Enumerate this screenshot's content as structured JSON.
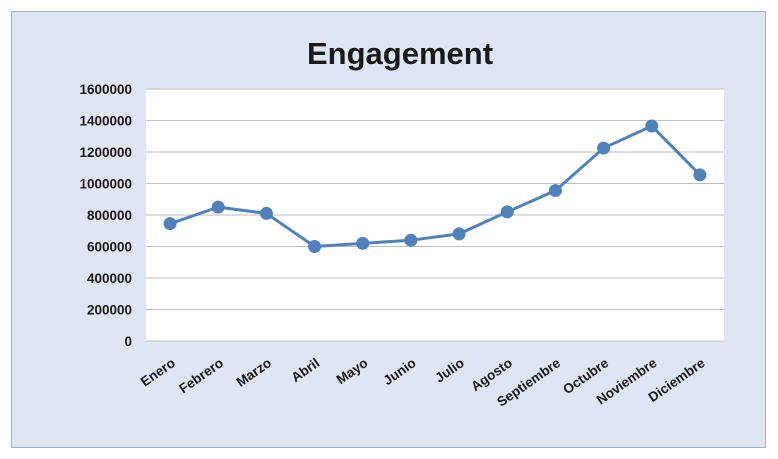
{
  "chart_data": {
    "type": "line",
    "title": "Engagement",
    "xlabel": "",
    "ylabel": "",
    "categories": [
      "Enero",
      "Febrero",
      "Marzo",
      "Abril",
      "Mayo",
      "Junio",
      "Julio",
      "Agosto",
      "Septiembre",
      "Octubre",
      "Noviembre",
      "Diciembre"
    ],
    "series": [
      {
        "values": [
          745000,
          850000,
          810000,
          600000,
          620000,
          640000,
          680000,
          820000,
          955000,
          1225000,
          1365000,
          1055000
        ]
      }
    ],
    "y_ticks": [
      "0",
      "200000",
      "400000",
      "600000",
      "800000",
      "1000000",
      "1200000",
      "1400000",
      "1600000"
    ],
    "ylim": [
      0,
      1600000
    ],
    "grid": true,
    "legend": "none",
    "colors": {
      "series": "#4f81bd",
      "frame_background": "#dde6f2",
      "plot_background": "#ffffff"
    }
  }
}
